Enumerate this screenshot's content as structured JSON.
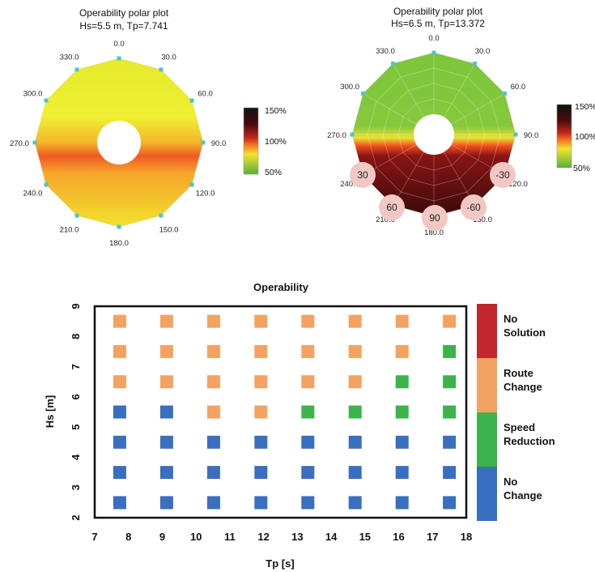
{
  "polar_plots": [
    {
      "title": "Operability polar plot",
      "subtitle": "Hs=5.5 m, Tp=7.741",
      "angle_labels": [
        "0.0",
        "30.0",
        "60.0",
        "90.0",
        "120.0",
        "150.0",
        "180.0",
        "210.0",
        "240.0",
        "270.0",
        "300.0",
        "330.0"
      ],
      "colorbar_labels": [
        "150%",
        "100%",
        "50%"
      ],
      "highlight_labels": []
    },
    {
      "title": "Operability polar plot",
      "subtitle": "Hs=6.5 m, Tp=13.372",
      "angle_labels": [
        "0.0",
        "30.0",
        "60.0",
        "90.0",
        "120.0",
        "150.0",
        "180.0",
        "210.0",
        "240.0",
        "270.0",
        "300.0",
        "330.0"
      ],
      "colorbar_labels": [
        "150%",
        "100%",
        "50%"
      ],
      "highlight_labels": [
        "30",
        "60",
        "90",
        "-60",
        "-30"
      ]
    }
  ],
  "colors": {
    "no_solution": "#c0282d",
    "route_change": "#f4a261",
    "speed_reduction": "#3cb44b",
    "no_change": "#3a6fbf",
    "marker_point": "#4fc3d9",
    "highlight_circle": "#f2c8c4"
  },
  "chart_data": {
    "type": "scatter",
    "title": "Operability",
    "xlabel": "Tp [s]",
    "ylabel": "Hs [m]",
    "xlim": [
      7,
      18
    ],
    "ylim": [
      2,
      9
    ],
    "xticks": [
      7,
      8,
      9,
      10,
      11,
      12,
      13,
      14,
      15,
      16,
      17,
      18
    ],
    "yticks": [
      2,
      3,
      4,
      5,
      6,
      7,
      8,
      9
    ],
    "tp_values": [
      7.74,
      9.13,
      10.52,
      11.92,
      13.31,
      14.71,
      16.1,
      17.5
    ],
    "hs_values": [
      2.5,
      3.5,
      4.5,
      5.5,
      6.5,
      7.5,
      8.5
    ],
    "grid": false,
    "legend_position": "right",
    "categories": [
      {
        "key": "no_solution",
        "label": "No Solution"
      },
      {
        "key": "route_change",
        "label": "Route Change"
      },
      {
        "key": "speed_reduction",
        "label": "Speed Reduction"
      },
      {
        "key": "no_change",
        "label": "No Change"
      }
    ],
    "status_rows": [
      {
        "hs": 8.5,
        "status": [
          "route_change",
          "route_change",
          "route_change",
          "route_change",
          "route_change",
          "route_change",
          "route_change",
          "route_change"
        ]
      },
      {
        "hs": 7.5,
        "status": [
          "route_change",
          "route_change",
          "route_change",
          "route_change",
          "route_change",
          "route_change",
          "route_change",
          "speed_reduction"
        ]
      },
      {
        "hs": 6.5,
        "status": [
          "route_change",
          "route_change",
          "route_change",
          "route_change",
          "route_change",
          "route_change",
          "speed_reduction",
          "speed_reduction"
        ]
      },
      {
        "hs": 5.5,
        "status": [
          "no_change",
          "no_change",
          "route_change",
          "route_change",
          "speed_reduction",
          "speed_reduction",
          "speed_reduction",
          "speed_reduction"
        ]
      },
      {
        "hs": 4.5,
        "status": [
          "no_change",
          "no_change",
          "no_change",
          "no_change",
          "no_change",
          "no_change",
          "no_change",
          "no_change"
        ]
      },
      {
        "hs": 3.5,
        "status": [
          "no_change",
          "no_change",
          "no_change",
          "no_change",
          "no_change",
          "no_change",
          "no_change",
          "no_change"
        ]
      },
      {
        "hs": 2.5,
        "status": [
          "no_change",
          "no_change",
          "no_change",
          "no_change",
          "no_change",
          "no_change",
          "no_change",
          "no_change"
        ]
      }
    ]
  }
}
